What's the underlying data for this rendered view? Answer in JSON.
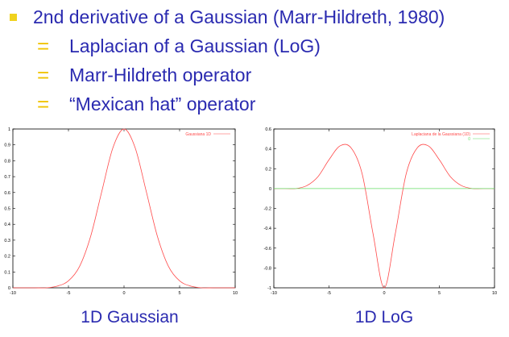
{
  "bullets": {
    "main": "2nd derivative of a Gaussian (Marr-Hildreth, 1980)",
    "subs": [
      "Laplacian of a Gaussian (LoG)",
      "Marr-Hildreth operator",
      "“Mexican hat” operator"
    ],
    "sub_marker": "="
  },
  "captions": {
    "left": "1D Gaussian",
    "right": "1D LoG"
  },
  "colors": {
    "text": "#2a2ab0",
    "bullet": "#f0d21e",
    "curve": "#ff4a4a",
    "zero_line": "#66dd66"
  },
  "chart_data": [
    {
      "type": "line",
      "xlim": [
        -10,
        10
      ],
      "ylim": [
        0,
        1
      ],
      "xticks": [
        -10,
        -5,
        0,
        5,
        10
      ],
      "yticks": [
        0,
        0.1,
        0.2,
        0.3,
        0.4,
        0.5,
        0.6,
        0.7,
        0.8,
        0.9,
        1
      ],
      "grid": false,
      "legend_position": "top-right",
      "series": [
        {
          "name": "Gaussiana 1D",
          "color": "#ff4a4a",
          "x": [
            -10,
            -9,
            -8,
            -7,
            -6,
            -5,
            -4,
            -3,
            -2,
            -1,
            0,
            1,
            2,
            3,
            4,
            5,
            6,
            7,
            8,
            9,
            10
          ],
          "y": [
            0.0,
            0.0,
            0.0,
            0.0,
            0.011,
            0.044,
            0.135,
            0.325,
            0.607,
            0.882,
            1.0,
            0.882,
            0.607,
            0.325,
            0.135,
            0.044,
            0.011,
            0.0,
            0.0,
            0.0,
            0.0
          ]
        }
      ]
    },
    {
      "type": "line",
      "xlim": [
        -10,
        10
      ],
      "ylim": [
        -1,
        0.6
      ],
      "xticks": [
        -10,
        -5,
        0,
        5,
        10
      ],
      "yticks": [
        -1,
        -0.8,
        -0.6,
        -0.4,
        -0.2,
        0,
        0.2,
        0.4,
        0.6
      ],
      "grid": false,
      "legend_position": "top-right",
      "series": [
        {
          "name": "Laplaciana de la Gaussiana (1D)",
          "color": "#ff4a4a",
          "x": [
            -10,
            -9,
            -8,
            -7,
            -6,
            -5,
            -4,
            -3,
            -2,
            -1,
            0,
            1,
            2,
            3,
            4,
            5,
            6,
            7,
            8,
            9,
            10
          ],
          "y": [
            0.0,
            0.0,
            0.0,
            0.03,
            0.12,
            0.29,
            0.43,
            0.41,
            0.15,
            -0.46,
            -1.0,
            -0.46,
            0.15,
            0.41,
            0.43,
            0.29,
            0.12,
            0.03,
            0.0,
            0.0,
            0.0
          ]
        },
        {
          "name": "0",
          "color": "#66dd66",
          "x": [
            -10,
            10
          ],
          "y": [
            0,
            0
          ]
        }
      ]
    }
  ]
}
